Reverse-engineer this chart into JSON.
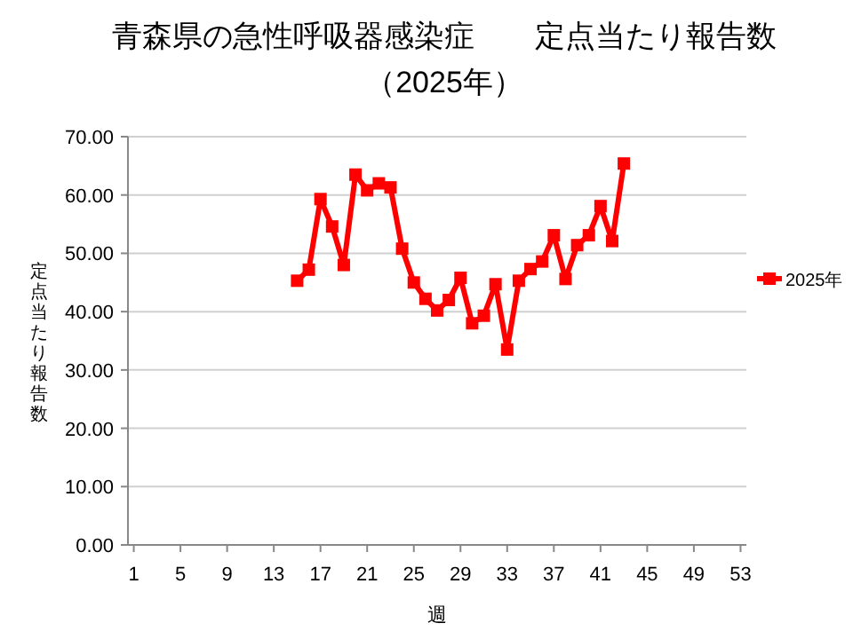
{
  "chart_data": {
    "type": "line",
    "title": "青森県の急性呼吸器感染症　　定点当たり報告数",
    "subtitle": "（2025年）",
    "xlabel": "週",
    "ylabel": "定点当たり報告数",
    "xlim": [
      0.5,
      53.5
    ],
    "xticks": [
      1,
      5,
      9,
      13,
      17,
      21,
      25,
      29,
      33,
      37,
      41,
      45,
      49,
      53
    ],
    "ylim": [
      0,
      70
    ],
    "yticks": [
      {
        "value": 0,
        "label": "0.00"
      },
      {
        "value": 10,
        "label": "10.00"
      },
      {
        "value": 20,
        "label": "20.00"
      },
      {
        "value": 30,
        "label": "30.00"
      },
      {
        "value": 40,
        "label": "40.00"
      },
      {
        "value": 50,
        "label": "50.00"
      },
      {
        "value": 60,
        "label": "60.00"
      },
      {
        "value": 70,
        "label": "70.00"
      }
    ],
    "grid": "y",
    "legend": "right",
    "marker": "square",
    "line_style": "solid",
    "series": [
      {
        "name": "2025年",
        "color": "#ff0000",
        "x": [
          15,
          16,
          17,
          18,
          19,
          20,
          21,
          22,
          23,
          24,
          25,
          26,
          27,
          28,
          29,
          30,
          31,
          32,
          33,
          34,
          35,
          36,
          37,
          38,
          39,
          40,
          41,
          42,
          43
        ],
        "values": [
          45.3,
          47.2,
          59.3,
          54.6,
          48.0,
          63.5,
          60.8,
          62.0,
          61.3,
          50.8,
          45.0,
          42.2,
          40.2,
          42.0,
          45.8,
          38.0,
          39.3,
          44.7,
          33.5,
          45.3,
          47.3,
          48.6,
          53.1,
          45.6,
          51.4,
          53.1,
          58.1,
          52.1,
          65.4
        ]
      }
    ]
  }
}
